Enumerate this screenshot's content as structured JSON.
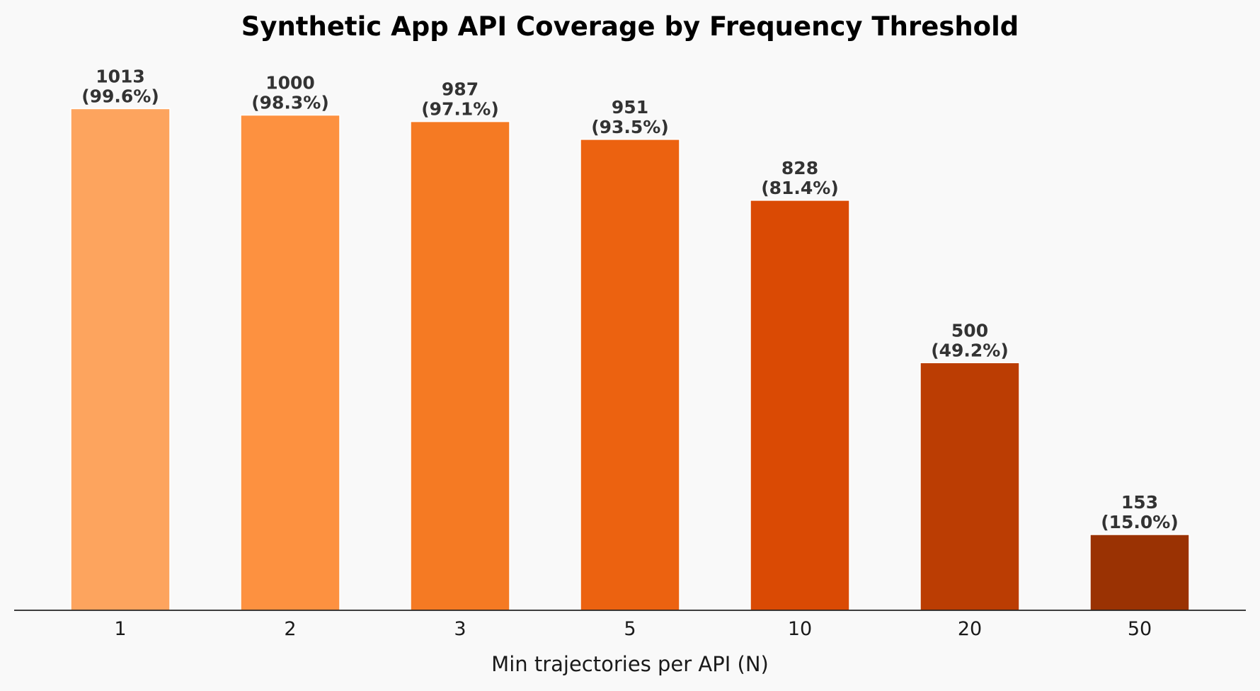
{
  "chart_data": {
    "type": "bar",
    "title": "Synthetic App API Coverage by Frequency Threshold",
    "xlabel": "Min trajectories per API (N)",
    "ylabel": "",
    "categories": [
      "1",
      "2",
      "3",
      "5",
      "10",
      "20",
      "50"
    ],
    "values": [
      1013,
      1000,
      987,
      951,
      828,
      500,
      153
    ],
    "percent_labels": [
      "(99.6%)",
      "(98.3%)",
      "(97.1%)",
      "(93.5%)",
      "(81.4%)",
      "(49.2%)",
      "(15.0%)"
    ],
    "value_labels": [
      "1013",
      "1000",
      "987",
      "951",
      "828",
      "500",
      "153"
    ],
    "colors": [
      "#fda45e",
      "#fd9140",
      "#f57a23",
      "#ec6210",
      "#da4a04",
      "#bb3d03",
      "#9a3203"
    ],
    "ylim": [
      0,
      1118
    ],
    "grid": false,
    "legend": "none"
  }
}
